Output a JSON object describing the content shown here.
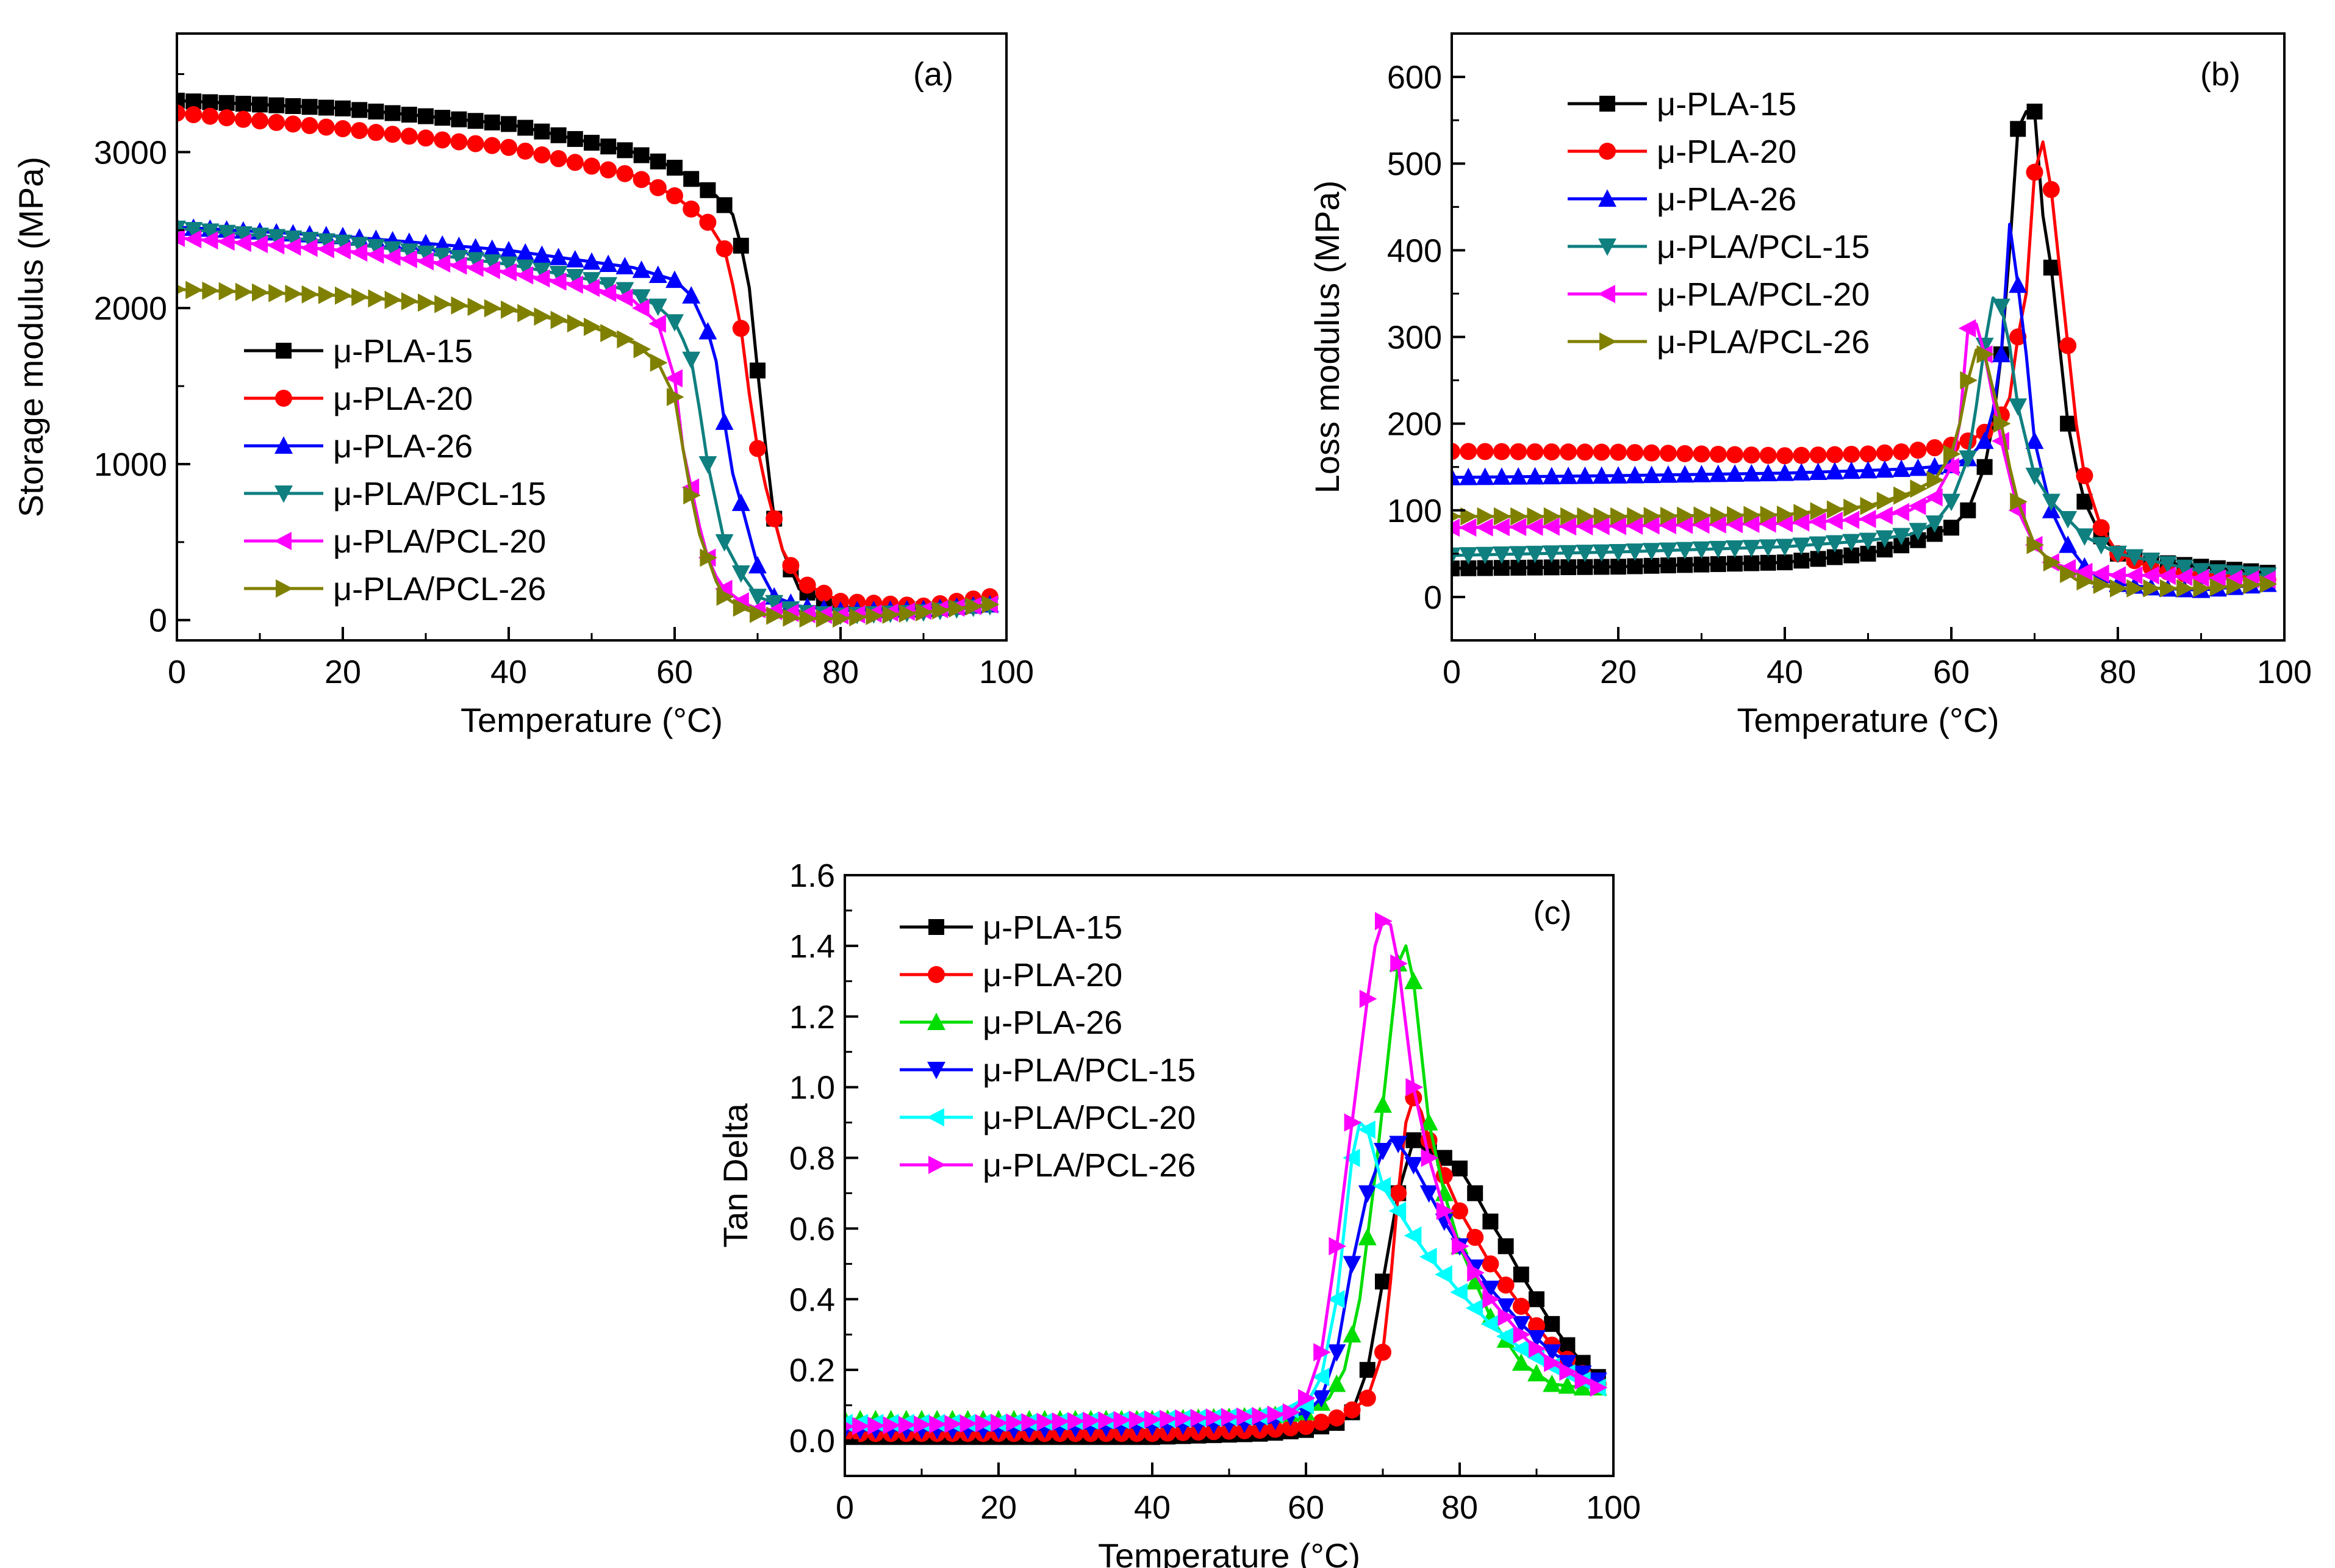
{
  "chart_data": [
    {
      "panel": "(a)",
      "type": "line",
      "title": "",
      "xlabel": "Temperature (°C)",
      "ylabel": "Storage modulus (MPa)",
      "xlim": [
        0,
        100
      ],
      "ylim": [
        -130,
        3760
      ],
      "xticks": [
        0,
        20,
        40,
        60,
        80,
        100
      ],
      "yticks": [
        0,
        1000,
        2000,
        3000
      ],
      "legend_position": "lower-left",
      "series": [
        {
          "name": "μ-PLA-15",
          "color": "#000000",
          "marker": "square",
          "x": [
            0,
            20,
            40,
            55,
            60,
            65,
            67,
            68,
            69,
            70,
            71,
            72,
            73,
            75,
            80,
            90,
            98
          ],
          "y": [
            3330,
            3280,
            3180,
            3000,
            2900,
            2720,
            2600,
            2400,
            2130,
            1600,
            1100,
            650,
            450,
            200,
            80,
            70,
            100
          ]
        },
        {
          "name": "μ-PLA-20",
          "color": "#ff0000",
          "marker": "circle",
          "x": [
            0,
            20,
            40,
            55,
            60,
            64,
            66,
            67,
            68,
            69,
            70,
            71,
            72,
            73,
            75,
            80,
            90,
            98
          ],
          "y": [
            3250,
            3150,
            3030,
            2850,
            2720,
            2550,
            2380,
            2150,
            1870,
            1450,
            1100,
            850,
            650,
            450,
            250,
            120,
            90,
            150
          ]
        },
        {
          "name": "μ-PLA-26",
          "color": "#0000ff",
          "marker": "triangle-up",
          "x": [
            0,
            20,
            40,
            55,
            60,
            62,
            64,
            65,
            66,
            67,
            68,
            70,
            72,
            75,
            80,
            90,
            98
          ],
          "y": [
            2520,
            2460,
            2370,
            2260,
            2180,
            2080,
            1850,
            1660,
            1270,
            940,
            750,
            350,
            150,
            90,
            60,
            70,
            100
          ]
        },
        {
          "name": "μ-PLA/PCL-15",
          "color": "#0f7f7f",
          "marker": "triangle-down",
          "x": [
            0,
            20,
            40,
            50,
            55,
            58,
            60,
            61,
            62,
            63,
            64,
            65,
            66,
            68,
            70,
            75,
            80,
            90,
            98
          ],
          "y": [
            2510,
            2420,
            2280,
            2180,
            2100,
            2010,
            1910,
            1800,
            1670,
            1350,
            1000,
            750,
            500,
            300,
            150,
            50,
            30,
            50,
            90
          ]
        },
        {
          "name": "μ-PLA/PCL-20",
          "color": "#ff00ff",
          "marker": "triangle-left",
          "x": [
            0,
            20,
            40,
            50,
            55,
            58,
            60,
            61,
            62,
            63,
            64,
            65,
            66,
            68,
            70,
            75,
            80,
            90,
            98
          ],
          "y": [
            2450,
            2370,
            2230,
            2130,
            2050,
            1900,
            1550,
            1100,
            850,
            600,
            400,
            280,
            200,
            120,
            70,
            40,
            30,
            60,
            100
          ]
        },
        {
          "name": "μ-PLA/PCL-26",
          "color": "#808000",
          "marker": "triangle-right",
          "x": [
            0,
            20,
            40,
            50,
            55,
            58,
            60,
            61,
            62,
            63,
            64,
            65,
            66,
            68,
            70,
            75,
            80,
            90,
            98
          ],
          "y": [
            2120,
            2080,
            1990,
            1880,
            1780,
            1650,
            1430,
            1100,
            800,
            550,
            400,
            250,
            150,
            80,
            40,
            10,
            10,
            50,
            100
          ]
        }
      ]
    },
    {
      "panel": "(b)",
      "type": "line",
      "title": "",
      "xlabel": "Temperature (°C)",
      "ylabel": "Loss modulus (MPa)",
      "xlim": [
        0,
        100
      ],
      "ylim": [
        -50,
        650
      ],
      "xticks": [
        0,
        20,
        40,
        60,
        80,
        100
      ],
      "yticks": [
        0,
        100,
        200,
        300,
        400,
        500,
        600
      ],
      "legend_position": "top-left",
      "series": [
        {
          "name": "μ-PLA-15",
          "color": "#000000",
          "marker": "square",
          "x": [
            0,
            20,
            40,
            50,
            55,
            60,
            62,
            64,
            65,
            66,
            67,
            68,
            69,
            70,
            71,
            72,
            73,
            74,
            75,
            76,
            78,
            80,
            85,
            90,
            98
          ],
          "y": [
            33,
            35,
            40,
            50,
            62,
            80,
            100,
            150,
            200,
            280,
            400,
            540,
            560,
            560,
            440,
            380,
            290,
            200,
            150,
            110,
            70,
            50,
            40,
            35,
            28
          ]
        },
        {
          "name": "μ-PLA-20",
          "color": "#ff0000",
          "marker": "circle",
          "x": [
            0,
            20,
            40,
            50,
            55,
            60,
            62,
            64,
            65,
            66,
            67,
            68,
            69,
            70,
            71,
            72,
            73,
            74,
            75,
            76,
            78,
            80,
            85,
            90,
            98
          ],
          "y": [
            168,
            167,
            163,
            165,
            168,
            175,
            180,
            190,
            200,
            210,
            230,
            300,
            350,
            490,
            525,
            470,
            380,
            290,
            200,
            140,
            80,
            50,
            30,
            25,
            20
          ]
        },
        {
          "name": "μ-PLA-26",
          "color": "#0000ff",
          "marker": "triangle-up",
          "x": [
            0,
            20,
            40,
            50,
            55,
            60,
            62,
            64,
            65,
            66,
            67,
            68,
            69,
            70,
            72,
            74,
            76,
            78,
            80,
            85,
            90,
            98
          ],
          "y": [
            138,
            140,
            143,
            146,
            148,
            152,
            160,
            180,
            215,
            280,
            430,
            360,
            280,
            180,
            100,
            60,
            35,
            20,
            15,
            10,
            8,
            15
          ]
        },
        {
          "name": "μ-PLA/PCL-15",
          "color": "#0f7f7f",
          "marker": "triangle-down",
          "x": [
            0,
            20,
            40,
            50,
            55,
            58,
            60,
            62,
            63,
            64,
            65,
            66,
            67,
            68,
            70,
            72,
            74,
            76,
            80,
            85,
            90,
            98
          ],
          "y": [
            48,
            52,
            58,
            65,
            72,
            85,
            110,
            160,
            220,
            290,
            345,
            335,
            290,
            220,
            140,
            110,
            90,
            70,
            50,
            40,
            30,
            25
          ]
        },
        {
          "name": "μ-PLA/PCL-20",
          "color": "#ff00ff",
          "marker": "triangle-left",
          "x": [
            0,
            20,
            40,
            50,
            55,
            58,
            60,
            61,
            62,
            63,
            64,
            65,
            66,
            68,
            70,
            72,
            75,
            80,
            85,
            90,
            98
          ],
          "y": [
            80,
            82,
            85,
            90,
            100,
            115,
            150,
            200,
            310,
            315,
            280,
            230,
            180,
            100,
            60,
            40,
            30,
            25,
            25,
            22,
            20
          ]
        },
        {
          "name": "μ-PLA/PCL-26",
          "color": "#808000",
          "marker": "triangle-right",
          "x": [
            0,
            20,
            40,
            50,
            55,
            58,
            60,
            61,
            62,
            63,
            64,
            65,
            66,
            67,
            68,
            70,
            72,
            75,
            80,
            85,
            90,
            98
          ],
          "y": [
            93,
            93,
            95,
            105,
            120,
            135,
            165,
            200,
            250,
            285,
            280,
            240,
            200,
            150,
            110,
            60,
            40,
            20,
            10,
            10,
            10,
            15
          ]
        }
      ]
    },
    {
      "panel": "(c)",
      "type": "line",
      "title": "",
      "xlabel": "Temperature (°C)",
      "ylabel": "Tan Delta",
      "xlim": [
        0,
        100
      ],
      "ylim": [
        -0.1,
        1.6
      ],
      "xticks": [
        0,
        20,
        40,
        60,
        80,
        100
      ],
      "yticks": [
        0.0,
        0.2,
        0.4,
        0.6,
        0.8,
        1.0,
        1.2,
        1.4,
        1.6
      ],
      "legend_position": "top-left",
      "series": [
        {
          "name": "μ-PLA-15",
          "color": "#000000",
          "marker": "square",
          "x": [
            0,
            20,
            40,
            55,
            60,
            64,
            66,
            68,
            70,
            72,
            74,
            76,
            78,
            80,
            82,
            84,
            86,
            88,
            90,
            92,
            94,
            96,
            98
          ],
          "y": [
            0.01,
            0.01,
            0.01,
            0.02,
            0.03,
            0.05,
            0.08,
            0.2,
            0.45,
            0.7,
            0.85,
            0.83,
            0.8,
            0.77,
            0.7,
            0.62,
            0.55,
            0.47,
            0.4,
            0.33,
            0.27,
            0.22,
            0.18
          ]
        },
        {
          "name": "μ-PLA-20",
          "color": "#ff0000",
          "marker": "circle",
          "x": [
            0,
            20,
            40,
            55,
            60,
            65,
            68,
            70,
            71,
            72,
            73,
            74,
            75,
            76,
            78,
            80,
            84,
            88,
            92,
            96,
            98
          ],
          "y": [
            0.02,
            0.02,
            0.02,
            0.03,
            0.04,
            0.07,
            0.12,
            0.25,
            0.45,
            0.7,
            0.9,
            0.97,
            0.93,
            0.85,
            0.75,
            0.65,
            0.5,
            0.38,
            0.27,
            0.19,
            0.16
          ]
        },
        {
          "name": "μ-PLA-26",
          "color": "#00dd00",
          "marker": "triangle-up",
          "x": [
            0,
            20,
            40,
            55,
            60,
            63,
            65,
            67,
            69,
            70,
            71,
            72,
            73,
            74,
            75,
            76,
            78,
            80,
            84,
            88,
            92,
            96,
            98
          ],
          "y": [
            0.06,
            0.06,
            0.06,
            0.07,
            0.08,
            0.12,
            0.2,
            0.4,
            0.75,
            0.95,
            1.15,
            1.35,
            1.4,
            1.3,
            1.1,
            0.9,
            0.7,
            0.55,
            0.35,
            0.22,
            0.16,
            0.15,
            0.15
          ]
        },
        {
          "name": "μ-PLA/PCL-15",
          "color": "#0000ff",
          "marker": "triangle-down",
          "x": [
            0,
            20,
            40,
            55,
            60,
            62,
            64,
            66,
            68,
            70,
            71,
            72,
            74,
            76,
            78,
            80,
            84,
            88,
            92,
            96,
            98
          ],
          "y": [
            0.03,
            0.03,
            0.04,
            0.05,
            0.08,
            0.12,
            0.25,
            0.5,
            0.7,
            0.82,
            0.85,
            0.84,
            0.78,
            0.7,
            0.62,
            0.55,
            0.43,
            0.33,
            0.25,
            0.19,
            0.17
          ]
        },
        {
          "name": "μ-PLA/PCL-20",
          "color": "#00ffff",
          "marker": "triangle-left",
          "x": [
            0,
            20,
            40,
            55,
            60,
            62,
            64,
            65,
            66,
            67,
            68,
            69,
            70,
            72,
            74,
            76,
            78,
            80,
            84,
            88,
            92,
            96,
            98
          ],
          "y": [
            0.05,
            0.05,
            0.06,
            0.07,
            0.1,
            0.18,
            0.4,
            0.6,
            0.8,
            0.9,
            0.88,
            0.8,
            0.72,
            0.65,
            0.58,
            0.52,
            0.47,
            0.42,
            0.33,
            0.26,
            0.21,
            0.17,
            0.15
          ]
        },
        {
          "name": "μ-PLA/PCL-26",
          "color": "#ff00ff",
          "marker": "triangle-right",
          "x": [
            0,
            20,
            40,
            55,
            58,
            60,
            62,
            64,
            66,
            68,
            69,
            70,
            71,
            72,
            74,
            76,
            78,
            80,
            84,
            88,
            92,
            96,
            98
          ],
          "y": [
            0.04,
            0.05,
            0.06,
            0.07,
            0.08,
            0.12,
            0.25,
            0.55,
            0.9,
            1.25,
            1.4,
            1.47,
            1.46,
            1.35,
            1.0,
            0.8,
            0.65,
            0.55,
            0.4,
            0.3,
            0.22,
            0.17,
            0.15
          ]
        }
      ]
    }
  ]
}
